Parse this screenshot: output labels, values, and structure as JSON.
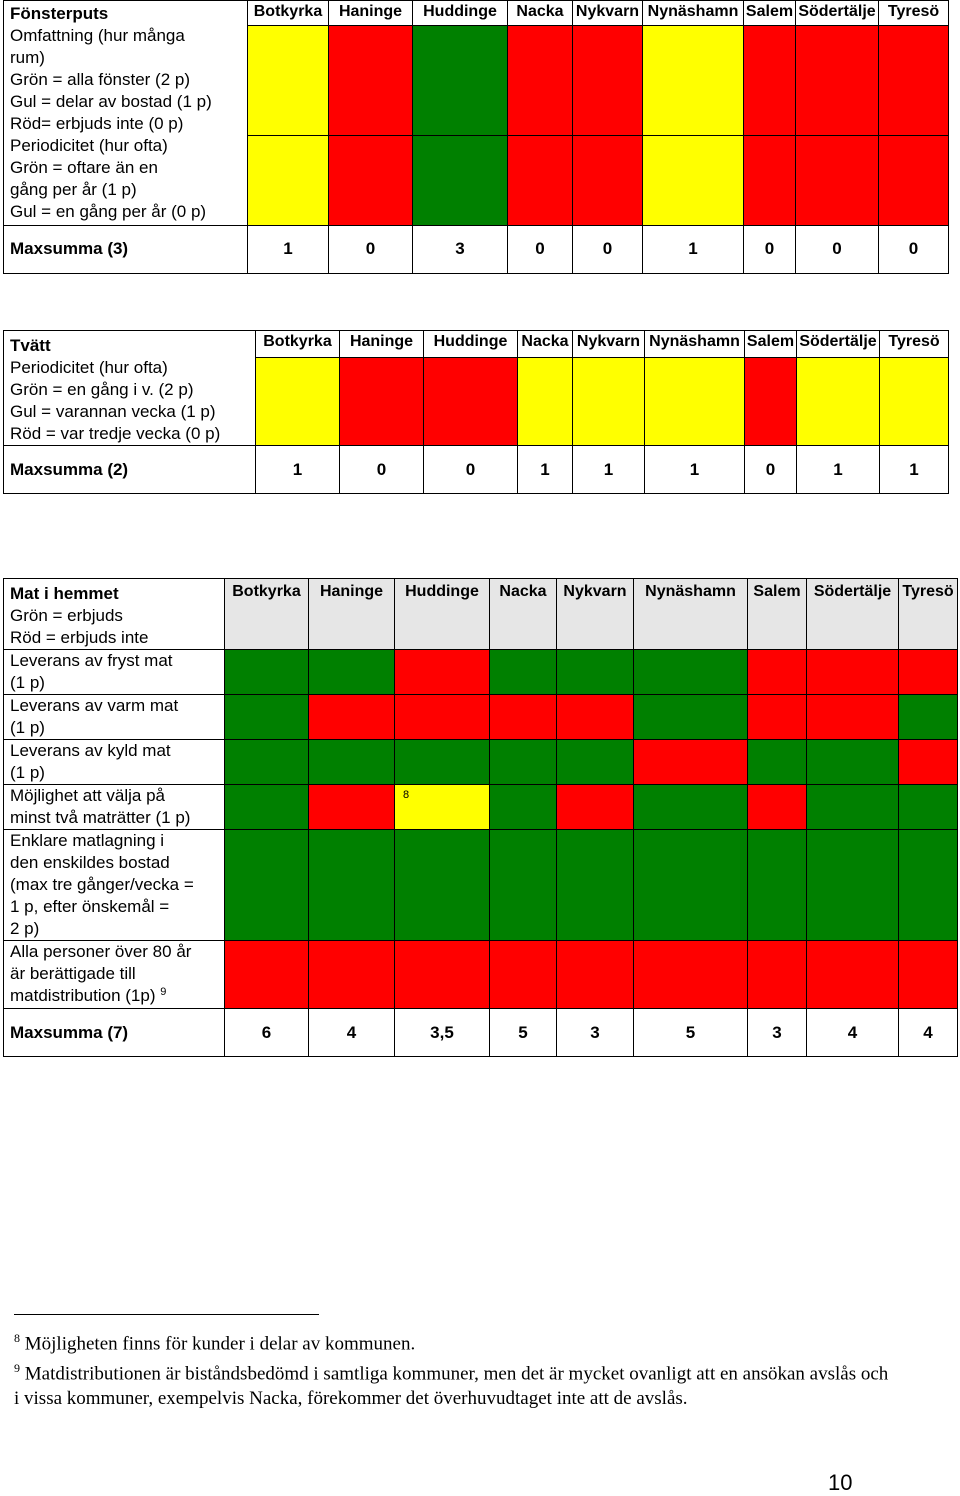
{
  "municipalities": [
    "Botkyrka",
    "Haninge",
    "Huddinge",
    "Nacka",
    "Nykvarn",
    "Nynäshamn",
    "Salem",
    "Södertälje",
    "Tyresö"
  ],
  "colors": {
    "green": "#008000",
    "red": "#ff0000",
    "yellow": "#ffff00",
    "grey": "#e6e6e6"
  },
  "fonsterputs": {
    "title": "Fönsterputs",
    "row1_lines": [
      "Omfattning (hur många",
      "rum)",
      "Grön = alla fönster (2 p)",
      "Gul = delar av bostad (1 p)",
      "Röd= erbjuds inte (0 p)"
    ],
    "row2_lines": [
      "Periodicitet (hur ofta)",
      "Grön = oftare än en",
      "gång per år (1 p)",
      "Gul = en gång per år (0 p)"
    ],
    "row1_colors": [
      "yellow",
      "red",
      "green",
      "red",
      "red",
      "yellow",
      "red",
      "red",
      "red"
    ],
    "row2_colors": [
      "yellow",
      "red",
      "green",
      "red",
      "red",
      "yellow",
      "red",
      "red",
      "red"
    ],
    "sum_label": "Maxsumma (3)",
    "sums": [
      "1",
      "0",
      "3",
      "0",
      "0",
      "1",
      "0",
      "0",
      "0"
    ]
  },
  "tvatt": {
    "title": "Tvätt",
    "row1_lines": [
      "Periodicitet (hur ofta)",
      "Grön = en gång i v. (2 p)",
      "Gul = varannan vecka (1 p)",
      "Röd = var tredje vecka (0 p)"
    ],
    "row1_colors": [
      "yellow",
      "red",
      "red",
      "yellow",
      "yellow",
      "yellow",
      "red",
      "yellow",
      "yellow"
    ],
    "sum_label": "Maxsumma (2)",
    "sums": [
      "1",
      "0",
      "0",
      "1",
      "1",
      "1",
      "0",
      "1",
      "1"
    ]
  },
  "mat": {
    "title": "Mat i hemmet",
    "legend_lines": [
      "Grön = erbjuds",
      "Röd = erbjuds inte"
    ],
    "rows": [
      {
        "lines": [
          "Leverans av fryst mat",
          "(1 p)"
        ],
        "colors": [
          "green",
          "green",
          "red",
          "green",
          "green",
          "green",
          "red",
          "red",
          "red"
        ]
      },
      {
        "lines": [
          "Leverans av varm mat",
          "(1 p)"
        ],
        "colors": [
          "green",
          "red",
          "red",
          "red",
          "red",
          "green",
          "red",
          "red",
          "green"
        ]
      },
      {
        "lines": [
          "Leverans av kyld mat",
          "(1 p)"
        ],
        "colors": [
          "green",
          "green",
          "green",
          "green",
          "green",
          "red",
          "green",
          "green",
          "red"
        ]
      },
      {
        "lines": [
          "Möjlighet att välja på",
          "minst två maträtter (1 p)"
        ],
        "colors": [
          "green",
          "red",
          "yellow",
          "green",
          "red",
          "green",
          "red",
          "green",
          "green"
        ]
      },
      {
        "lines": [
          "Enklare matlagning i",
          "den enskildes bostad",
          "(max tre gånger/vecka =",
          "1 p, efter önskemål =",
          "2 p)"
        ],
        "colors": [
          "green",
          "green",
          "green",
          "green",
          "green",
          "green",
          "green",
          "green",
          "green"
        ]
      },
      {
        "lines": [
          "Alla personer över 80 år",
          "är berättigade till",
          "matdistribution (1p)"
        ],
        "colors": [
          "red",
          "red",
          "red",
          "red",
          "red",
          "red",
          "red",
          "red",
          "red"
        ]
      }
    ],
    "cell_note": "8",
    "row_fnref": "9",
    "sum_label": "Maxsumma (7)",
    "sums": [
      "6",
      "4",
      "3,5",
      "5",
      "3",
      "5",
      "3",
      "4",
      "4"
    ]
  },
  "footnotes": [
    {
      "num": "8",
      "text": "Möjligheten finns för kunder i delar av kommunen."
    },
    {
      "num": "9",
      "text": "Matdistributionen är biståndsbedömd i samtliga kommuner, men det är mycket ovanligt att en ansökan avslås och i vissa kommuner, exempelvis Nacka, förekommer det överhuvudtaget inte att de avslås."
    }
  ],
  "page_number": "10"
}
